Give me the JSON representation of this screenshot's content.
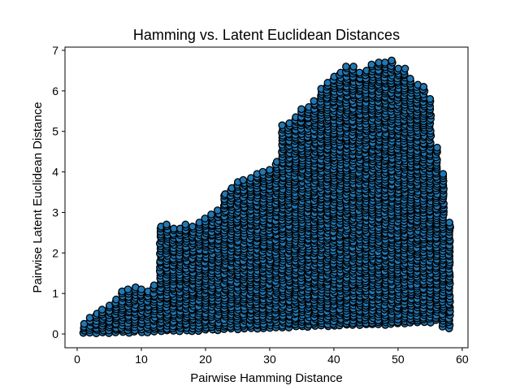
{
  "chart_data": {
    "type": "scatter",
    "title": "Hamming vs. Latent Euclidean Distances",
    "xlabel": "Pairwise Hamming Distance",
    "ylabel": "Pairwise Latent Euclidean Distance",
    "xlim": [
      -1.9,
      60.9
    ],
    "ylim": [
      -0.34,
      7.08
    ],
    "xticks": [
      0,
      10,
      20,
      30,
      40,
      50,
      60
    ],
    "yticks": [
      0,
      1,
      2,
      3,
      4,
      5,
      6,
      7
    ],
    "grid": false,
    "legend": "none",
    "marker_color": "#1f77b4",
    "marker_edge_color": "#000000",
    "upper_envelope": [
      [
        1,
        0.25
      ],
      [
        2,
        0.4
      ],
      [
        3,
        0.5
      ],
      [
        4,
        0.6
      ],
      [
        5,
        0.7
      ],
      [
        6,
        0.85
      ],
      [
        7,
        1.05
      ],
      [
        8,
        1.1
      ],
      [
        9,
        1.15
      ],
      [
        10,
        1.1
      ],
      [
        11,
        1.05
      ],
      [
        12,
        1.2
      ],
      [
        13,
        2.65
      ],
      [
        14,
        2.7
      ],
      [
        15,
        2.6
      ],
      [
        16,
        2.6
      ],
      [
        17,
        2.7
      ],
      [
        18,
        2.65
      ],
      [
        19,
        2.75
      ],
      [
        20,
        2.85
      ],
      [
        21,
        2.95
      ],
      [
        22,
        3.05
      ],
      [
        23,
        3.45
      ],
      [
        24,
        3.6
      ],
      [
        25,
        3.75
      ],
      [
        26,
        3.8
      ],
      [
        27,
        3.85
      ],
      [
        28,
        3.95
      ],
      [
        29,
        4.0
      ],
      [
        30,
        4.05
      ],
      [
        31,
        4.25
      ],
      [
        32,
        5.15
      ],
      [
        33,
        5.2
      ],
      [
        34,
        5.35
      ],
      [
        35,
        5.55
      ],
      [
        36,
        5.6
      ],
      [
        37,
        5.75
      ],
      [
        38,
        6.05
      ],
      [
        39,
        6.2
      ],
      [
        40,
        6.35
      ],
      [
        41,
        6.45
      ],
      [
        42,
        6.6
      ],
      [
        43,
        6.6
      ],
      [
        44,
        6.45
      ],
      [
        45,
        6.5
      ],
      [
        46,
        6.65
      ],
      [
        47,
        6.7
      ],
      [
        48,
        6.7
      ],
      [
        49,
        6.75
      ],
      [
        50,
        6.55
      ],
      [
        51,
        6.55
      ],
      [
        52,
        6.3
      ],
      [
        53,
        6.15
      ],
      [
        54,
        6.1
      ],
      [
        55,
        5.8
      ],
      [
        56,
        4.6
      ],
      [
        57,
        3.95
      ],
      [
        58,
        2.75
      ]
    ],
    "lower_envelope": [
      [
        1,
        0.02
      ],
      [
        5,
        0.03
      ],
      [
        10,
        0.05
      ],
      [
        20,
        0.1
      ],
      [
        30,
        0.15
      ],
      [
        40,
        0.2
      ],
      [
        50,
        0.25
      ],
      [
        55,
        0.3
      ],
      [
        56,
        0.35
      ],
      [
        57,
        0.2
      ],
      [
        58,
        0.15
      ]
    ]
  }
}
